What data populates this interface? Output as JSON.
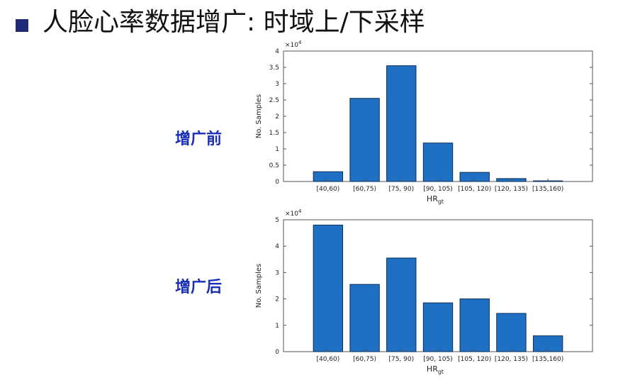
{
  "slide": {
    "title": "人脸心率数据增广: 时域上/下采样",
    "label_before": "增广前",
    "label_after": "增广后"
  },
  "colors": {
    "bar_fill": "#1f6fc2",
    "bar_stroke": "#0b2f5a",
    "bullet": "#1f2a78",
    "side_label": "#1a2fb8"
  },
  "chart_data": [
    {
      "type": "bar",
      "title": "",
      "xlabel": "HR",
      "xlabel_sub": "gt",
      "ylabel": "No. Samples",
      "scale_label": "×10",
      "scale_exp": "4",
      "categories": [
        "[40,60)",
        "[60,75)",
        "[75, 90)",
        "[90, 105)",
        "[105, 120)",
        "[120, 135)",
        "[135,160)"
      ],
      "values": [
        3000,
        25500,
        35500,
        11800,
        2800,
        900,
        200
      ],
      "ylim": [
        0,
        40000
      ],
      "yticks": [
        0,
        0.5,
        1,
        1.5,
        2,
        2.5,
        3,
        3.5,
        4
      ],
      "grid": false
    },
    {
      "type": "bar",
      "title": "",
      "xlabel": "HR",
      "xlabel_sub": "gt",
      "ylabel": "No. Samples",
      "scale_label": "×10",
      "scale_exp": "4",
      "categories": [
        "[40,60)",
        "[60,75)",
        "[75, 90)",
        "[90, 105)",
        "[105, 120)",
        "[120, 135)",
        "[135,160)"
      ],
      "values": [
        48000,
        25500,
        35500,
        18500,
        20000,
        14500,
        6000
      ],
      "ylim": [
        0,
        50000
      ],
      "yticks": [
        0,
        1,
        2,
        3,
        4,
        5
      ],
      "grid": false
    }
  ]
}
